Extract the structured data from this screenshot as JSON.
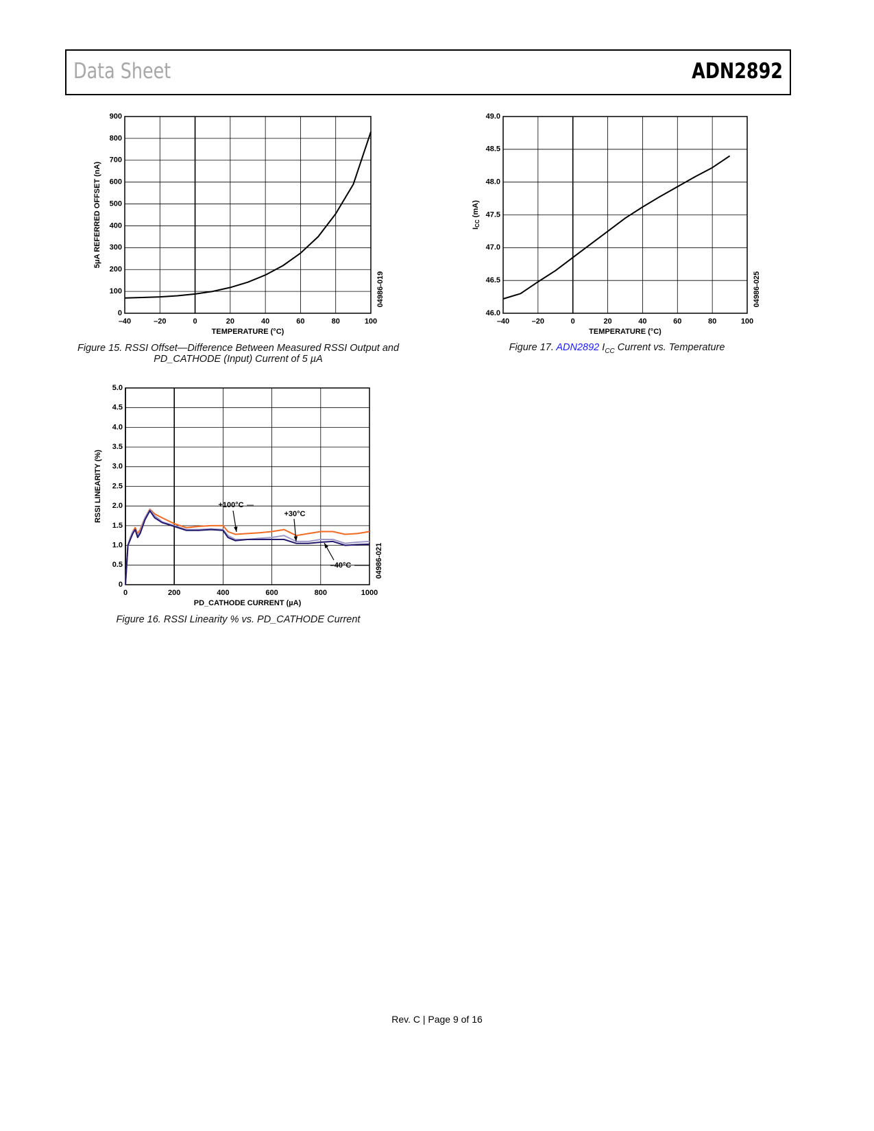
{
  "header": {
    "left": "Data Sheet",
    "right": "ADN2892"
  },
  "footer": "Rev. C | Page 9 of 16",
  "chart_data": [
    {
      "type": "line",
      "caption": [
        "Figure 15. RSSI Offset—Difference Between Measured RSSI Output and",
        "PD_CATHODE (Input) Current of 5 µA"
      ],
      "xlabel": "TEMPERATURE (°C)",
      "ylabel": "5μA REFERRED OFFSET (nA)",
      "code": "04986-019",
      "xlim": [
        -40,
        100
      ],
      "xticks": [
        {
          "value": -40,
          "label": "–40"
        },
        {
          "value": -20,
          "label": "–20"
        },
        0,
        20,
        40,
        60,
        80,
        100
      ],
      "ylim": [
        0,
        900
      ],
      "yticks": [
        0,
        100,
        200,
        300,
        400,
        500,
        600,
        700,
        800,
        900
      ],
      "grid": true,
      "x": [
        -40,
        -30,
        -20,
        -10,
        0,
        10,
        20,
        30,
        40,
        50,
        60,
        70,
        80,
        90,
        100
      ],
      "series": [
        {
          "color": "#000000",
          "values": [
            70,
            72,
            75,
            80,
            88,
            100,
            118,
            142,
            175,
            218,
            275,
            350,
            455,
            590,
            830
          ]
        }
      ]
    },
    {
      "type": "line",
      "caption": [
        "Figure 16. RSSI Linearity % vs. PD_CATHODE Current"
      ],
      "xlabel": "PD_CATHODE CURRENT (µA)",
      "ylabel": "RSSI LINEARITY (%)",
      "code": "04986-021",
      "xlim": [
        0,
        1000
      ],
      "xticks": [
        0,
        200,
        400,
        600,
        800,
        1000
      ],
      "ylim": [
        0,
        5
      ],
      "yticks": [
        0,
        0.5,
        {
          "value": 1,
          "label": "1.0"
        },
        1.5,
        {
          "value": 2,
          "label": "2.0"
        },
        2.5,
        {
          "value": 3,
          "label": "3.0"
        },
        3.5,
        {
          "value": 4,
          "label": "4.0"
        },
        4.5,
        {
          "value": 5,
          "label": "5.0"
        }
      ],
      "grid": true,
      "x": [
        0,
        5,
        10,
        20,
        30,
        40,
        50,
        60,
        80,
        100,
        120,
        150,
        200,
        250,
        300,
        350,
        400,
        420,
        450,
        500,
        550,
        600,
        650,
        700,
        750,
        800,
        850,
        900,
        950,
        1000
      ],
      "series": [
        {
          "name": "+100°C",
          "color": "#f26a21",
          "values": [
            0,
            0.5,
            1.0,
            1.2,
            1.35,
            1.45,
            1.3,
            1.4,
            1.7,
            1.92,
            1.8,
            1.7,
            1.55,
            1.45,
            1.48,
            1.5,
            1.5,
            1.35,
            1.28,
            1.3,
            1.32,
            1.35,
            1.4,
            1.25,
            1.3,
            1.35,
            1.35,
            1.28,
            1.3,
            1.35
          ]
        },
        {
          "name": "+30°C",
          "color": "#9c98c8",
          "values": [
            0,
            0.5,
            1.0,
            1.2,
            1.35,
            1.4,
            1.25,
            1.35,
            1.7,
            1.9,
            1.75,
            1.6,
            1.5,
            1.4,
            1.4,
            1.42,
            1.4,
            1.25,
            1.15,
            1.15,
            1.18,
            1.2,
            1.25,
            1.1,
            1.1,
            1.15,
            1.15,
            1.05,
            1.08,
            1.1
          ]
        },
        {
          "name": "–40°C",
          "color": "#231a6e",
          "values": [
            0,
            0.5,
            1.0,
            1.15,
            1.3,
            1.4,
            1.2,
            1.3,
            1.65,
            1.88,
            1.7,
            1.58,
            1.48,
            1.38,
            1.38,
            1.4,
            1.38,
            1.2,
            1.12,
            1.15,
            1.15,
            1.15,
            1.15,
            1.05,
            1.05,
            1.08,
            1.1,
            1.0,
            1.02,
            1.03
          ]
        }
      ]
    },
    {
      "type": "line",
      "caption": [
        "Figure 17. ",
        "ADN2892",
        " I",
        "CC",
        " Current vs. Temperature"
      ],
      "xlabel": "TEMPERATURE (°C)",
      "ylabel": [
        "I",
        "CC",
        " (mA)"
      ],
      "code": "04986-025",
      "xlim": [
        -40,
        100
      ],
      "xticks": [
        {
          "value": -40,
          "label": "–40"
        },
        {
          "value": -20,
          "label": "–20"
        },
        0,
        20,
        40,
        60,
        80,
        100
      ],
      "ylim": [
        46,
        49
      ],
      "yticks": [
        {
          "value": 46,
          "label": "46.0"
        },
        46.5,
        {
          "value": 47,
          "label": "47.0"
        },
        47.5,
        {
          "value": 48,
          "label": "48.0"
        },
        48.5,
        {
          "value": 49,
          "label": "49.0"
        }
      ],
      "grid": true,
      "x": [
        -40,
        -30,
        -20,
        -10,
        0,
        10,
        20,
        30,
        40,
        50,
        60,
        70,
        80,
        90
      ],
      "series": [
        {
          "color": "#000000",
          "values": [
            46.22,
            46.3,
            46.48,
            46.65,
            46.85,
            47.05,
            47.25,
            47.45,
            47.62,
            47.78,
            47.93,
            48.08,
            48.22,
            48.4
          ]
        }
      ]
    }
  ]
}
